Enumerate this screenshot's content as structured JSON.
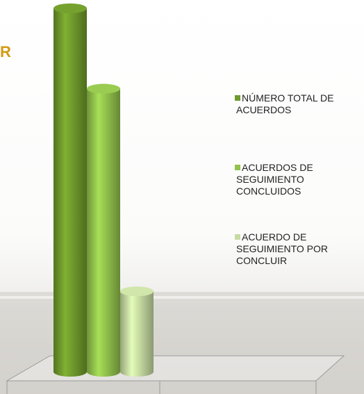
{
  "chart_data": {
    "type": "bar3d",
    "title": "R",
    "categories": [
      null
    ],
    "series": [
      {
        "name": "NÚMERO TOTAL DE ACUERDOS",
        "color": "#6f9a2c",
        "values": [
          104
        ]
      },
      {
        "name": "ACUERDOS DE SEGUIMIENTO CONCLUIDOS",
        "color": "#92c24c",
        "values": [
          81
        ]
      },
      {
        "name": "ACUERDO DE SEGUIMIENTO POR CONCLUIR",
        "color": "#c6dba2",
        "values": [
          23
        ]
      }
    ]
  }
}
